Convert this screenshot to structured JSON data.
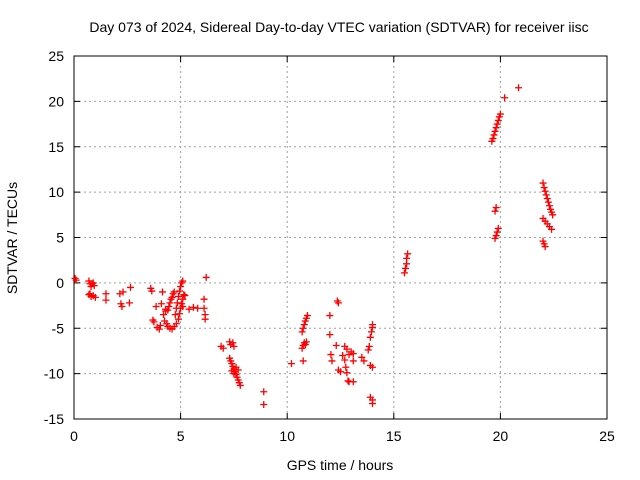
{
  "chart_data": {
    "type": "scatter",
    "title": "Day 073 of 2024, Sidereal Day-to-day VTEC variation (SDTVAR) for receiver iisc",
    "xlabel": "GPS time / hours",
    "ylabel": "SDTVAR / TECUs",
    "xlim": [
      0,
      25
    ],
    "ylim": [
      -15,
      25
    ],
    "xticks": [
      0,
      5,
      10,
      15,
      20,
      25
    ],
    "yticks": [
      -15,
      -10,
      -5,
      0,
      5,
      10,
      15,
      20,
      25
    ],
    "grid": true,
    "marker": "plus",
    "color": "#ff0000",
    "series": [
      {
        "points": [
          [
            0.05,
            0.5
          ],
          [
            0.1,
            0.3
          ],
          [
            0.7,
            0.2
          ],
          [
            0.75,
            -0.1
          ],
          [
            0.8,
            -0.4
          ],
          [
            0.85,
            -0.1
          ],
          [
            0.9,
            0.0
          ],
          [
            0.95,
            -0.3
          ],
          [
            0.7,
            -1.3
          ],
          [
            0.8,
            -1.5
          ],
          [
            0.9,
            -1.4
          ],
          [
            1.0,
            -1.6
          ],
          [
            0.75,
            -1.2
          ],
          [
            1.5,
            -1.2
          ],
          [
            1.5,
            -1.9
          ],
          [
            2.15,
            -1.2
          ],
          [
            2.2,
            -2.3
          ],
          [
            2.25,
            -2.6
          ],
          [
            2.3,
            -1.0
          ],
          [
            2.6,
            -2.2
          ],
          [
            2.65,
            -0.5
          ],
          [
            3.6,
            -0.6
          ],
          [
            3.65,
            -0.9
          ],
          [
            3.7,
            -4.1
          ],
          [
            3.75,
            -4.3
          ],
          [
            3.85,
            -2.6
          ],
          [
            3.9,
            -4.9
          ],
          [
            4.0,
            -5.1
          ],
          [
            4.05,
            -4.7
          ],
          [
            4.1,
            -2.3
          ],
          [
            4.15,
            -1.0
          ],
          [
            4.2,
            -3.5
          ],
          [
            4.25,
            -4.2
          ],
          [
            4.3,
            -3.1
          ],
          [
            4.35,
            -4.5
          ],
          [
            4.3,
            -2.9
          ],
          [
            4.4,
            -3.0
          ],
          [
            4.45,
            -2.6
          ],
          [
            4.5,
            -2.2
          ],
          [
            4.55,
            -1.8
          ],
          [
            4.6,
            -1.6
          ],
          [
            4.65,
            -1.2
          ],
          [
            4.7,
            -1.0
          ],
          [
            4.4,
            -4.8
          ],
          [
            4.5,
            -5.0
          ],
          [
            4.6,
            -5.1
          ],
          [
            4.7,
            -4.8
          ],
          [
            4.8,
            -4.5
          ],
          [
            4.75,
            -3.5
          ],
          [
            4.8,
            -2.8
          ],
          [
            4.85,
            -2.2
          ],
          [
            4.9,
            -1.5
          ],
          [
            4.95,
            -0.9
          ],
          [
            5.0,
            -0.4
          ],
          [
            5.05,
            0.0
          ],
          [
            5.1,
            0.2
          ],
          [
            4.9,
            -4.0
          ],
          [
            4.95,
            -3.4
          ],
          [
            5.0,
            -2.8
          ],
          [
            5.05,
            -2.3
          ],
          [
            5.1,
            -1.8
          ],
          [
            5.15,
            -1.3
          ],
          [
            5.1,
            -2.6
          ],
          [
            5.2,
            -1.4
          ],
          [
            5.4,
            -2.9
          ],
          [
            5.6,
            -2.7
          ],
          [
            5.8,
            -2.8
          ],
          [
            6.1,
            -1.8
          ],
          [
            6.1,
            -2.8
          ],
          [
            6.15,
            -3.5
          ],
          [
            6.15,
            -4.0
          ],
          [
            6.2,
            0.6
          ],
          [
            6.9,
            -7.0
          ],
          [
            7.0,
            -7.2
          ],
          [
            7.3,
            -6.5
          ],
          [
            7.35,
            -6.8
          ],
          [
            7.45,
            -6.6
          ],
          [
            7.5,
            -7.0
          ],
          [
            7.3,
            -8.3
          ],
          [
            7.35,
            -8.6
          ],
          [
            7.4,
            -8.9
          ],
          [
            7.45,
            -9.2
          ],
          [
            7.5,
            -9.5
          ],
          [
            7.55,
            -9.8
          ],
          [
            7.6,
            -10.1
          ],
          [
            7.65,
            -10.4
          ],
          [
            7.7,
            -10.7
          ],
          [
            7.75,
            -11.0
          ],
          [
            7.8,
            -11.3
          ],
          [
            7.4,
            -9.7
          ],
          [
            7.5,
            -10.0
          ],
          [
            7.6,
            -9.3
          ],
          [
            7.7,
            -9.6
          ],
          [
            8.9,
            -12.0
          ],
          [
            8.9,
            -13.4
          ],
          [
            10.2,
            -8.9
          ],
          [
            10.7,
            -5.4
          ],
          [
            10.75,
            -5.0
          ],
          [
            10.8,
            -4.6
          ],
          [
            10.85,
            -4.2
          ],
          [
            10.9,
            -3.9
          ],
          [
            10.95,
            -3.6
          ],
          [
            10.7,
            -7.2
          ],
          [
            10.75,
            -6.9
          ],
          [
            10.8,
            -6.6
          ],
          [
            10.85,
            -6.8
          ],
          [
            10.9,
            -6.5
          ],
          [
            10.75,
            -8.6
          ],
          [
            12.0,
            -3.6
          ],
          [
            12.0,
            -5.7
          ],
          [
            12.05,
            -7.9
          ],
          [
            12.1,
            -8.6
          ],
          [
            12.35,
            -2.0
          ],
          [
            12.4,
            -2.2
          ],
          [
            12.3,
            -6.9
          ],
          [
            12.4,
            -9.6
          ],
          [
            12.5,
            -9.8
          ],
          [
            12.6,
            -8.0
          ],
          [
            12.7,
            -8.5
          ],
          [
            12.75,
            -9.3
          ],
          [
            12.8,
            -9.9
          ],
          [
            12.85,
            -10.8
          ],
          [
            12.7,
            -7.0
          ],
          [
            12.8,
            -7.3
          ],
          [
            12.9,
            -7.9
          ],
          [
            13.0,
            -7.6
          ],
          [
            13.1,
            -7.8
          ],
          [
            13.1,
            -8.6
          ],
          [
            12.9,
            -10.9
          ],
          [
            13.1,
            -10.9
          ],
          [
            13.5,
            -8.2
          ],
          [
            13.6,
            -8.6
          ],
          [
            13.8,
            -7.4
          ],
          [
            13.85,
            -7.0
          ],
          [
            13.9,
            -6.0
          ],
          [
            13.95,
            -5.4
          ],
          [
            14.0,
            -4.9
          ],
          [
            14.0,
            -4.6
          ],
          [
            13.9,
            -12.6
          ],
          [
            14.0,
            -12.9
          ],
          [
            14.0,
            -13.3
          ],
          [
            13.9,
            -9.1
          ],
          [
            14.0,
            -9.3
          ],
          [
            15.5,
            1.1
          ],
          [
            15.55,
            1.6
          ],
          [
            15.6,
            2.1
          ],
          [
            15.6,
            2.7
          ],
          [
            15.65,
            3.2
          ],
          [
            19.6,
            15.6
          ],
          [
            19.65,
            15.9
          ],
          [
            19.7,
            16.3
          ],
          [
            19.75,
            16.7
          ],
          [
            19.8,
            17.1
          ],
          [
            19.85,
            17.5
          ],
          [
            19.9,
            17.9
          ],
          [
            19.95,
            18.3
          ],
          [
            20.0,
            18.6
          ],
          [
            19.75,
            7.9
          ],
          [
            19.8,
            8.3
          ],
          [
            19.75,
            4.9
          ],
          [
            19.8,
            5.2
          ],
          [
            19.85,
            5.6
          ],
          [
            19.9,
            6.0
          ],
          [
            20.2,
            20.4
          ],
          [
            20.85,
            21.5
          ],
          [
            22.0,
            11.0
          ],
          [
            22.05,
            10.5
          ],
          [
            22.1,
            10.1
          ],
          [
            22.15,
            9.7
          ],
          [
            22.2,
            9.3
          ],
          [
            22.25,
            8.9
          ],
          [
            22.3,
            8.5
          ],
          [
            22.35,
            8.1
          ],
          [
            22.4,
            7.8
          ],
          [
            22.45,
            7.5
          ],
          [
            22.0,
            7.1
          ],
          [
            22.1,
            6.8
          ],
          [
            22.2,
            6.5
          ],
          [
            22.3,
            6.2
          ],
          [
            22.4,
            5.9
          ],
          [
            22.0,
            4.6
          ],
          [
            22.05,
            4.3
          ],
          [
            22.1,
            4.0
          ]
        ]
      }
    ]
  }
}
